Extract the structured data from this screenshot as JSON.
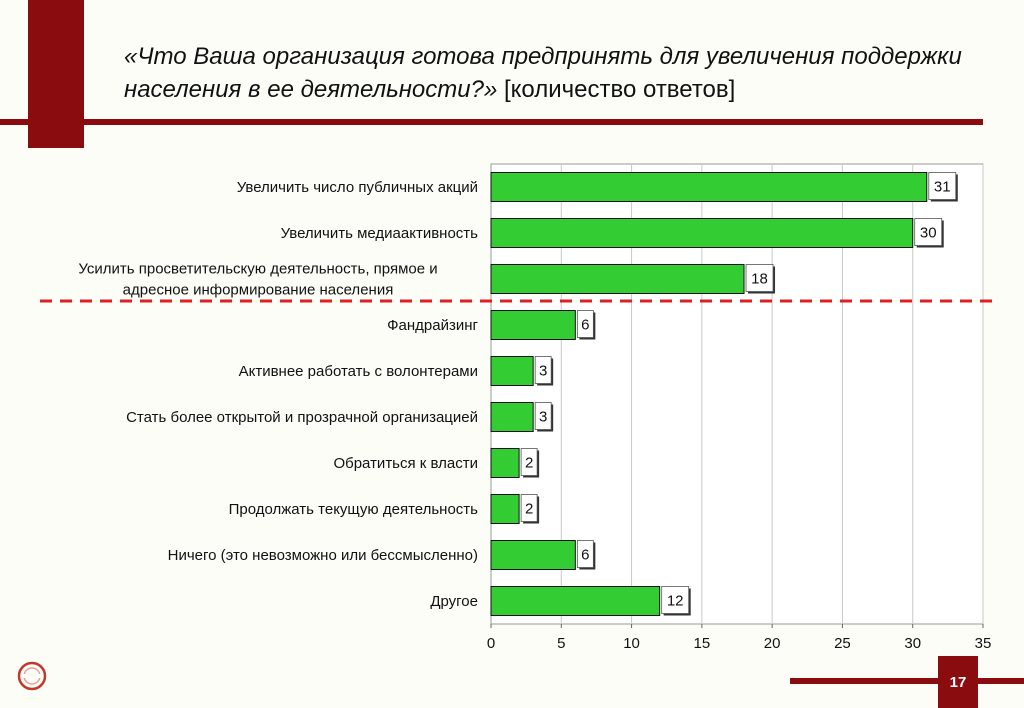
{
  "slide": {
    "title_italic": "«Что Ваша организация готова предпринять для увеличения поддержки населения в ее деятельности?»",
    "title_suffix": "[количество ответов]",
    "page_number": "17",
    "accent_color": "#8b0c0e",
    "logo_icon": "circular-logo-icon"
  },
  "chart_data": {
    "type": "bar",
    "orientation": "horizontal",
    "categories": [
      "Увеличить число публичных акций",
      "Увеличить медиаактивность",
      "Усилить просветительскую деятельность, прямое и адресное информирование населения",
      "Фандрайзинг",
      "Активнее работать с волонтерами",
      "Стать более открытой и прозрачной организацией",
      "Обратиться к власти",
      "Продолжать текущую деятельность",
      "Ничего (это невозможно или бессмысленно)",
      "Другое"
    ],
    "values": [
      31,
      30,
      18,
      6,
      3,
      3,
      2,
      2,
      6,
      12
    ],
    "x_ticks": [
      "0",
      "5",
      "10",
      "15",
      "20",
      "25",
      "30",
      "35"
    ],
    "xlim": [
      0,
      35
    ],
    "grid": true,
    "bar_color": "#33cc33",
    "separator_after_index": 2,
    "separator_color": "#e02020",
    "title": "",
    "xlabel": "",
    "ylabel": ""
  }
}
